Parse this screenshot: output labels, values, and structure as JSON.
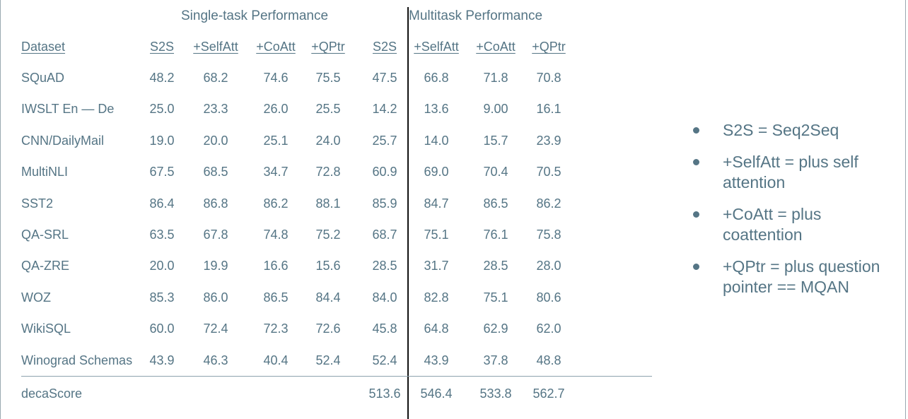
{
  "table": {
    "group_headers": [
      "Single-task Performance",
      "Multitask Performance"
    ],
    "columns": [
      "Dataset",
      "S2S",
      "+SelfAtt",
      "+CoAtt",
      "+QPtr",
      "S2S",
      "+SelfAtt",
      "+CoAtt",
      "+QPtr"
    ],
    "rows": [
      [
        "SQuAD",
        "48.2",
        "68.2",
        "74.6",
        "75.5",
        "47.5",
        "66.8",
        "71.8",
        "70.8"
      ],
      [
        "IWSLT En — De",
        "25.0",
        "23.3",
        "26.0",
        "25.5",
        "14.2",
        "13.6",
        "9.00",
        "16.1"
      ],
      [
        "CNN/DailyMail",
        "19.0",
        "20.0",
        "25.1",
        "24.0",
        "25.7",
        "14.0",
        "15.7",
        "23.9"
      ],
      [
        "MultiNLI",
        "67.5",
        "68.5",
        "34.7",
        "72.8",
        "60.9",
        "69.0",
        "70.4",
        "70.5"
      ],
      [
        "SST2",
        "86.4",
        "86.8",
        "86.2",
        "88.1",
        "85.9",
        "84.7",
        "86.5",
        "86.2"
      ],
      [
        "QA-SRL",
        "63.5",
        "67.8",
        "74.8",
        "75.2",
        "68.7",
        "75.1",
        "76.1",
        "75.8"
      ],
      [
        "QA-ZRE",
        "20.0",
        "19.9",
        "16.6",
        "15.6",
        "28.5",
        "31.7",
        "28.5",
        "28.0"
      ],
      [
        "WOZ",
        "85.3",
        "86.0",
        "86.5",
        "84.4",
        "84.0",
        "82.8",
        "75.1",
        "80.6"
      ],
      [
        "WikiSQL",
        "60.0",
        "72.4",
        "72.3",
        "72.6",
        "45.8",
        "64.8",
        "62.9",
        "62.0"
      ],
      [
        "Winograd Schemas",
        "43.9",
        "46.3",
        "40.4",
        "52.4",
        "52.4",
        "43.9",
        "37.8",
        "48.8"
      ]
    ],
    "summary": [
      "decaScore",
      "",
      "",
      "",
      "",
      "513.6",
      "546.4",
      "533.8",
      "562.7"
    ]
  },
  "legend": {
    "items": [
      "S2S = Seq2Seq",
      "+SelfAtt = plus self attention",
      "+CoAtt = plus coattention",
      "+QPtr = plus question pointer == MQAN"
    ]
  }
}
